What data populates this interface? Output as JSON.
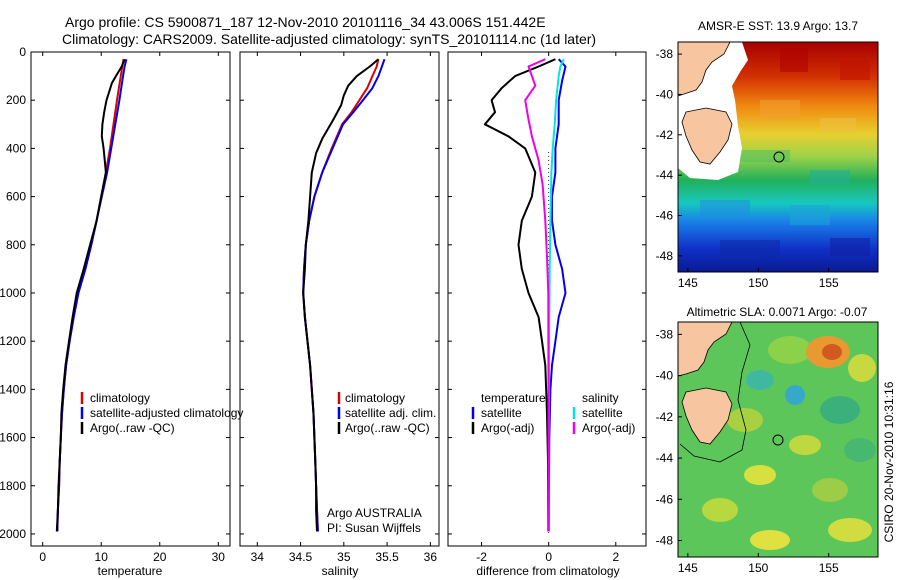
{
  "header": {
    "title_line1": "Argo profile: CS 5900871_187 12-Nov-2010 20101116_34 43.006S 151.442E",
    "title_line2": "Climatology: CARS2009. Satellite-adjusted climatology: synTS_20101114.nc (1d later)"
  },
  "side_label": "CSIRO 20-Nov-2010 10:31:16",
  "colors": {
    "climatology": "#dd0000",
    "satellite": "#0000ee",
    "argo": "#000000",
    "cyan": "#00e5e5",
    "magenta": "#ee00ee",
    "land": "#f7c59f"
  },
  "chart_data": [
    {
      "type": "line",
      "panel": "temperature",
      "xlabel": "temperature",
      "ylabel": "",
      "xlim": [
        -2,
        32
      ],
      "ylim": [
        2050,
        0
      ],
      "xticks": [
        "0",
        "10",
        "20",
        "30"
      ],
      "yticks": [
        "0",
        "200",
        "400",
        "600",
        "800",
        "1000",
        "1200",
        "1400",
        "1600",
        "1800",
        "2000"
      ],
      "legend": [
        "climatology",
        "satellite-adjusted climatology",
        "Argo(..raw -QC)"
      ],
      "series": [
        {
          "name": "climatology",
          "color": "#dd0000",
          "points": [
            [
              13.8,
              30
            ],
            [
              13.6,
              60
            ],
            [
              13.2,
              120
            ],
            [
              12.7,
              200
            ],
            [
              12.1,
              300
            ],
            [
              11.5,
              400
            ],
            [
              10.8,
              500
            ],
            [
              10,
              600
            ],
            [
              9.2,
              700
            ],
            [
              8.3,
              800
            ],
            [
              7.3,
              900
            ],
            [
              6.1,
              1000
            ],
            [
              5.3,
              1100
            ],
            [
              4.6,
              1200
            ],
            [
              4,
              1300
            ],
            [
              3.6,
              1400
            ],
            [
              3.3,
              1500
            ],
            [
              3.1,
              1600
            ],
            [
              2.9,
              1700
            ],
            [
              2.8,
              1800
            ],
            [
              2.6,
              1900
            ],
            [
              2.5,
              1990
            ]
          ]
        },
        {
          "name": "satellite-adjusted climatology",
          "color": "#0000ee",
          "points": [
            [
              14.3,
              30
            ],
            [
              14,
              60
            ],
            [
              13.6,
              120
            ],
            [
              13.1,
              200
            ],
            [
              12.4,
              300
            ],
            [
              11.7,
              400
            ],
            [
              11,
              500
            ],
            [
              10.1,
              600
            ],
            [
              9.2,
              700
            ],
            [
              8.3,
              800
            ],
            [
              7.3,
              900
            ],
            [
              6.1,
              1000
            ],
            [
              5.3,
              1100
            ],
            [
              4.6,
              1200
            ],
            [
              4,
              1300
            ],
            [
              3.6,
              1400
            ],
            [
              3.3,
              1500
            ],
            [
              3.1,
              1600
            ],
            [
              2.9,
              1700
            ],
            [
              2.8,
              1800
            ],
            [
              2.6,
              1900
            ],
            [
              2.5,
              1990
            ]
          ]
        },
        {
          "name": "Argo(..raw -QC)",
          "color": "#000000",
          "points": [
            [
              14,
              30
            ],
            [
              13.5,
              60
            ],
            [
              12.5,
              100
            ],
            [
              11.8,
              130
            ],
            [
              11.3,
              170
            ],
            [
              10.9,
              200
            ],
            [
              10.5,
              250
            ],
            [
              10.2,
              300
            ],
            [
              10.1,
              350
            ],
            [
              10.4,
              400
            ],
            [
              10.8,
              500
            ],
            [
              10,
              600
            ],
            [
              9.2,
              700
            ],
            [
              8.1,
              800
            ],
            [
              7,
              900
            ],
            [
              5.8,
              1000
            ],
            [
              5.1,
              1100
            ],
            [
              4.5,
              1200
            ],
            [
              3.9,
              1300
            ],
            [
              3.5,
              1400
            ],
            [
              3.2,
              1500
            ],
            [
              3.1,
              1600
            ],
            [
              2.9,
              1700
            ],
            [
              2.7,
              1800
            ],
            [
              2.6,
              1900
            ],
            [
              2.4,
              1990
            ]
          ]
        }
      ]
    },
    {
      "type": "line",
      "panel": "salinity",
      "xlabel": "salinity",
      "ylabel": "",
      "xlim": [
        33.8,
        36.1
      ],
      "ylim": [
        2050,
        0
      ],
      "xticks": [
        "34",
        "34.5",
        "35",
        "35.5",
        "36"
      ],
      "legend": [
        "climatology",
        "satellite adj. clim.",
        "Argo(..raw -QC)"
      ],
      "annotation": [
        "Argo AUSTRALIA",
        "PI: Susan Wijffels"
      ],
      "series": [
        {
          "name": "climatology",
          "color": "#dd0000",
          "points": [
            [
              35.4,
              30
            ],
            [
              35.38,
              60
            ],
            [
              35.33,
              100
            ],
            [
              35.27,
              150
            ],
            [
              35.18,
              200
            ],
            [
              35.09,
              250
            ],
            [
              34.98,
              300
            ],
            [
              34.86,
              400
            ],
            [
              34.75,
              500
            ],
            [
              34.66,
              600
            ],
            [
              34.6,
              700
            ],
            [
              34.56,
              800
            ],
            [
              34.54,
              900
            ],
            [
              34.53,
              1000
            ],
            [
              34.55,
              1100
            ],
            [
              34.58,
              1200
            ],
            [
              34.61,
              1300
            ],
            [
              34.63,
              1400
            ],
            [
              34.65,
              1500
            ],
            [
              34.66,
              1600
            ],
            [
              34.67,
              1700
            ],
            [
              34.68,
              1800
            ],
            [
              34.69,
              1900
            ],
            [
              34.7,
              1990
            ]
          ]
        },
        {
          "name": "satellite adj. clim.",
          "color": "#0000ee",
          "points": [
            [
              35.47,
              30
            ],
            [
              35.44,
              60
            ],
            [
              35.4,
              100
            ],
            [
              35.33,
              150
            ],
            [
              35.22,
              200
            ],
            [
              35.11,
              250
            ],
            [
              34.99,
              300
            ],
            [
              34.87,
              400
            ],
            [
              34.75,
              500
            ],
            [
              34.66,
              600
            ],
            [
              34.6,
              700
            ],
            [
              34.56,
              800
            ],
            [
              34.54,
              900
            ],
            [
              34.53,
              1000
            ],
            [
              34.55,
              1100
            ],
            [
              34.58,
              1200
            ],
            [
              34.61,
              1300
            ],
            [
              34.63,
              1400
            ],
            [
              34.65,
              1500
            ],
            [
              34.66,
              1600
            ],
            [
              34.67,
              1700
            ],
            [
              34.68,
              1800
            ],
            [
              34.69,
              1900
            ],
            [
              34.7,
              1990
            ]
          ]
        },
        {
          "name": "Argo(..raw -QC)",
          "color": "#000000",
          "points": [
            [
              35.4,
              30
            ],
            [
              35.3,
              60
            ],
            [
              35.15,
              100
            ],
            [
              35.05,
              140
            ],
            [
              35,
              180
            ],
            [
              34.97,
              220
            ],
            [
              34.88,
              280
            ],
            [
              34.75,
              360
            ],
            [
              34.68,
              420
            ],
            [
              34.63,
              500
            ],
            [
              34.61,
              600
            ],
            [
              34.59,
              700
            ],
            [
              34.56,
              800
            ],
            [
              34.55,
              900
            ],
            [
              34.53,
              1000
            ],
            [
              34.55,
              1100
            ],
            [
              34.58,
              1200
            ],
            [
              34.61,
              1300
            ],
            [
              34.63,
              1400
            ],
            [
              34.65,
              1500
            ],
            [
              34.66,
              1600
            ],
            [
              34.67,
              1700
            ],
            [
              34.68,
              1800
            ],
            [
              34.68,
              1900
            ],
            [
              34.69,
              1990
            ]
          ]
        }
      ]
    },
    {
      "type": "line",
      "panel": "difference",
      "xlabel": "difference from climatology",
      "ylabel": "",
      "xlim": [
        -3.0,
        2.9
      ],
      "ylim": [
        2050,
        0
      ],
      "xticks": [
        "-2",
        "0",
        "2"
      ],
      "legend_left": [
        "temperature",
        "satellite",
        "Argo(-adj)"
      ],
      "legend_right": [
        "salinity",
        "satellite",
        "Argo(-adj)"
      ],
      "series": [
        {
          "name": "satellite",
          "color": "#0000ee",
          "points": [
            [
              0.3,
              30
            ],
            [
              0.5,
              60
            ],
            [
              0.4,
              120
            ],
            [
              0.3,
              200
            ],
            [
              0.3,
              300
            ],
            [
              0.2,
              400
            ],
            [
              0.2,
              500
            ],
            [
              0.1,
              600
            ],
            [
              0.1,
              700
            ],
            [
              0.2,
              800
            ],
            [
              0.4,
              900
            ],
            [
              0.5,
              1000
            ],
            [
              0.3,
              1100
            ],
            [
              0.2,
              1200
            ],
            [
              0.1,
              1300
            ],
            [
              0.05,
              1400
            ],
            [
              0.02,
              1600
            ],
            [
              0.01,
              1800
            ],
            [
              0,
              1990
            ]
          ]
        },
        {
          "name": "Argo(-adj)",
          "color": "#000000",
          "points": [
            [
              0.2,
              30
            ],
            [
              -0.3,
              60
            ],
            [
              -1,
              100
            ],
            [
              -1.4,
              150
            ],
            [
              -1.7,
              200
            ],
            [
              -1.6,
              250
            ],
            [
              -1.9,
              300
            ],
            [
              -1.2,
              350
            ],
            [
              -0.7,
              400
            ],
            [
              -0.4,
              500
            ],
            [
              -0.5,
              600
            ],
            [
              -0.8,
              700
            ],
            [
              -0.9,
              800
            ],
            [
              -0.8,
              900
            ],
            [
              -0.6,
              1000
            ],
            [
              -0.3,
              1100
            ],
            [
              -0.2,
              1200
            ],
            [
              -0.1,
              1300
            ],
            [
              -0.05,
              1500
            ],
            [
              -0.02,
              1700
            ],
            [
              -0.01,
              1990
            ]
          ]
        },
        {
          "name": "salinity satellite",
          "color": "#00e5e5",
          "points": [
            [
              0.45,
              30
            ],
            [
              0.35,
              60
            ],
            [
              0.3,
              100
            ],
            [
              0.22,
              200
            ],
            [
              0.18,
              300
            ],
            [
              0.12,
              400
            ],
            [
              0.08,
              500
            ],
            [
              0.05,
              700
            ],
            [
              0.03,
              900
            ],
            [
              0.02,
              1100
            ],
            [
              0.01,
              1300
            ],
            [
              0,
              1600
            ],
            [
              0,
              1990
            ]
          ]
        },
        {
          "name": "salinity Argo(-adj)",
          "color": "#ee00ee",
          "points": [
            [
              -0.1,
              30
            ],
            [
              -0.6,
              60
            ],
            [
              -0.5,
              100
            ],
            [
              -0.4,
              140
            ],
            [
              -0.7,
              200
            ],
            [
              -0.6,
              280
            ],
            [
              -0.5,
              350
            ],
            [
              -0.3,
              450
            ],
            [
              -0.18,
              550
            ],
            [
              -0.1,
              700
            ],
            [
              -0.05,
              850
            ],
            [
              -0.01,
              1000
            ],
            [
              0,
              1990
            ]
          ]
        }
      ]
    }
  ],
  "maps": {
    "sst": {
      "title": "AMSR-E SST: 13.9  Argo: 13.7",
      "xticks": [
        "145",
        "150",
        "155"
      ],
      "yticks": [
        "-38",
        "-40",
        "-42",
        "-44",
        "-46",
        "-48"
      ]
    },
    "sla": {
      "title": "Altimetric SLA: 0.0071  Argo: -0.07",
      "xticks": [
        "145",
        "150",
        "155"
      ],
      "yticks": [
        "-38",
        "-40",
        "-42",
        "-44",
        "-46",
        "-48"
      ]
    }
  }
}
